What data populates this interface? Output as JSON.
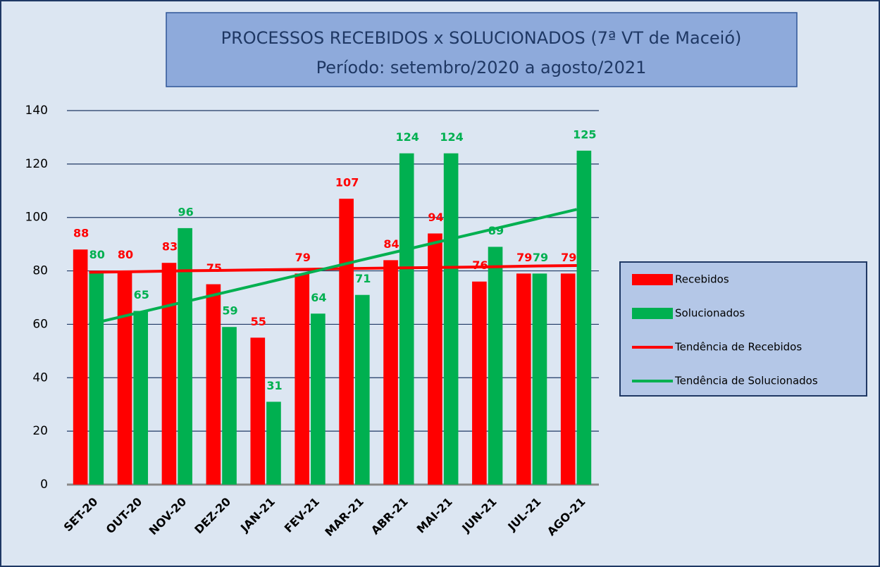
{
  "chart_data": {
    "type": "bar",
    "title": "PROCESSOS RECEBIDOS x SOLUCIONADOS (7ª VT de Maceió)",
    "subtitle": "Período: setembro/2020 a agosto/2021",
    "categories": [
      "SET-20",
      "OUT-20",
      "NOV-20",
      "DEZ-20",
      "JAN-21",
      "FEV-21",
      "MAR-21",
      "ABR-21",
      "MAI-21",
      "JUN-21",
      "JUL-21",
      "AGO-21"
    ],
    "series": [
      {
        "name": "Recebidos",
        "type": "bar",
        "color": "#ff0000",
        "values": [
          88,
          80,
          83,
          75,
          55,
          79,
          107,
          84,
          94,
          76,
          79,
          79
        ]
      },
      {
        "name": "Solucionados",
        "type": "bar",
        "color": "#00b050",
        "values": [
          80,
          65,
          96,
          59,
          31,
          64,
          71,
          124,
          124,
          89,
          79,
          125
        ]
      },
      {
        "name": "Tendência de Recebidos",
        "type": "line",
        "color": "#ff0000",
        "values": [
          79.5,
          79.7,
          80.0,
          80.2,
          80.4,
          80.6,
          80.9,
          81.1,
          81.3,
          81.5,
          81.8,
          82.0
        ]
      },
      {
        "name": "Tendência de Solucionados",
        "type": "line",
        "color": "#00b050",
        "values": [
          60,
          63.9,
          67.8,
          71.7,
          75.6,
          79.5,
          83.5,
          87.4,
          91.3,
          95.2,
          99.1,
          103
        ]
      }
    ],
    "ylim": [
      0,
      140
    ],
    "yticks": [
      0,
      20,
      40,
      60,
      80,
      100,
      120,
      140
    ],
    "grid": true,
    "legend": "right"
  }
}
